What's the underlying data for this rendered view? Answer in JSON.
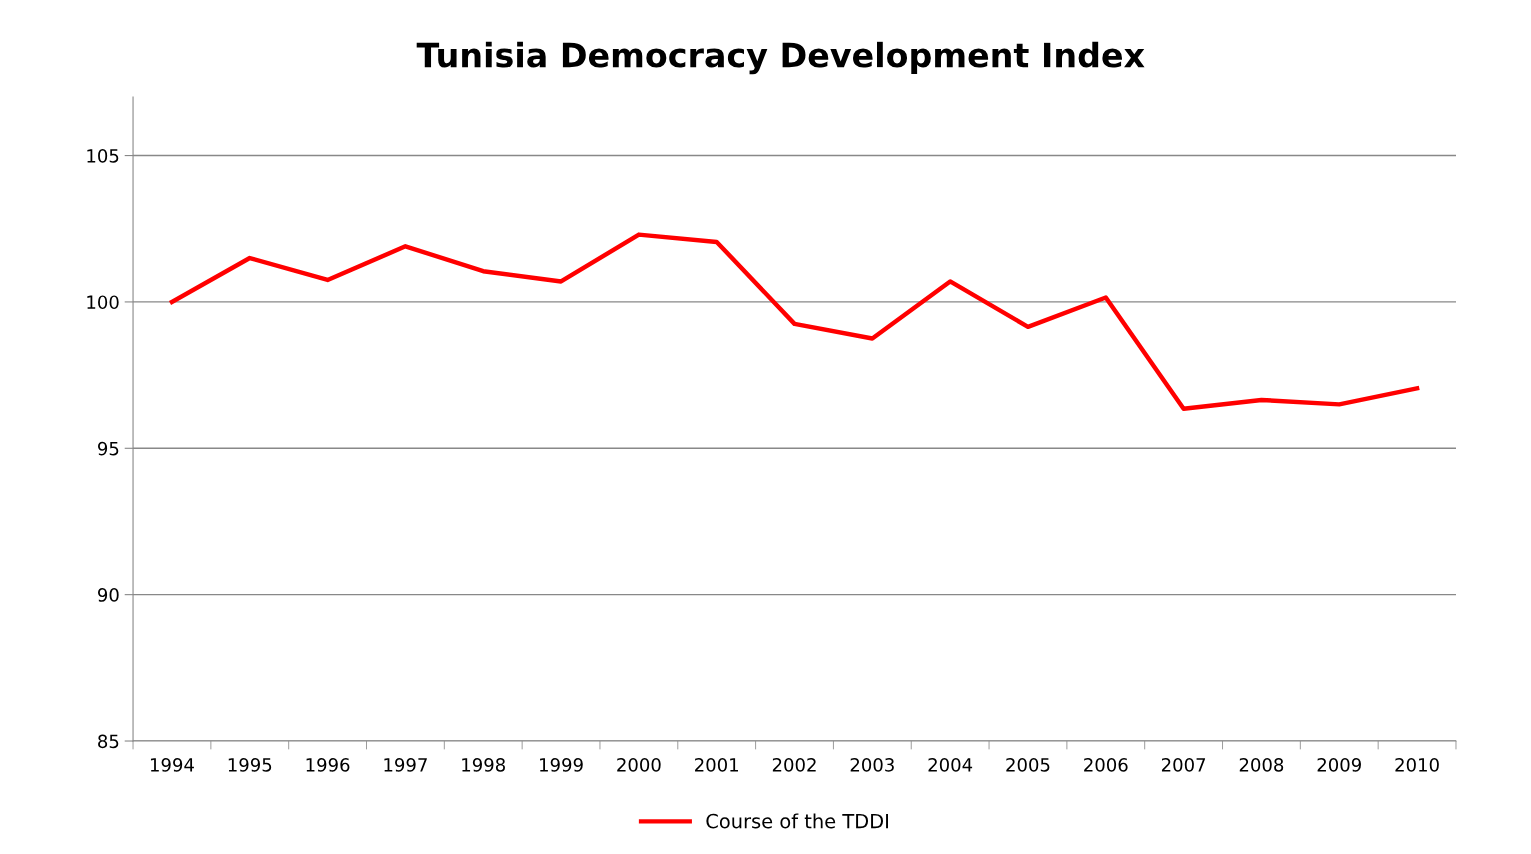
{
  "chart_data": {
    "type": "line",
    "title": "Tunisia Democracy Development Index",
    "categories": [
      "1994",
      "1995",
      "1996",
      "1997",
      "1998",
      "1999",
      "2000",
      "2001",
      "2002",
      "2003",
      "2004",
      "2005",
      "2006",
      "2007",
      "2008",
      "2009",
      "2010"
    ],
    "series": [
      {
        "name": "Course of the TDDI",
        "color": "#ff0000",
        "values": [
          100.0,
          101.5,
          100.75,
          101.9,
          101.05,
          100.7,
          102.3,
          102.05,
          99.25,
          98.75,
          100.7,
          99.15,
          100.15,
          96.35,
          96.65,
          96.5,
          97.05
        ]
      }
    ],
    "ylim": [
      85,
      107
    ],
    "yticks": [
      85,
      90,
      95,
      100,
      105
    ],
    "grid": "y",
    "legend": "bottom",
    "marker": "none",
    "line_style": "solid"
  }
}
